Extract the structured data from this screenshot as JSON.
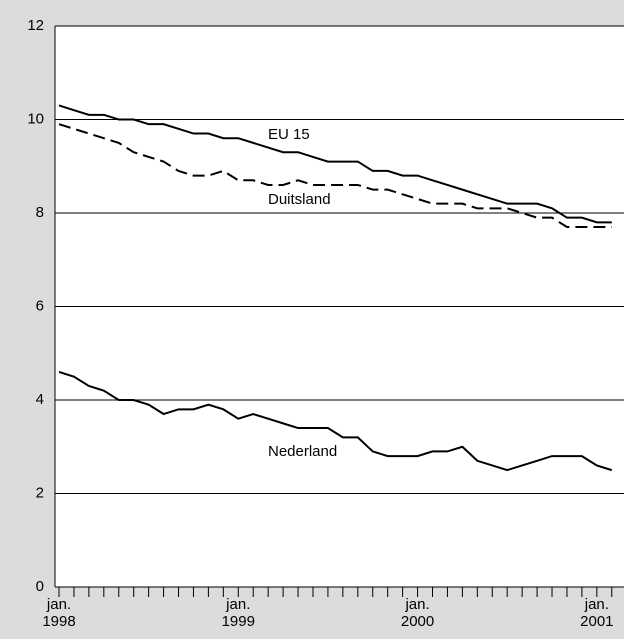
{
  "chart_data": {
    "type": "line",
    "categories": [
      "jan. 1998",
      null,
      null,
      null,
      null,
      null,
      null,
      null,
      null,
      null,
      null,
      null,
      "jan. 1999",
      null,
      null,
      null,
      null,
      null,
      null,
      null,
      null,
      null,
      null,
      null,
      "jan. 2000",
      null,
      null,
      null,
      null,
      null,
      null,
      null,
      null,
      null,
      null,
      null,
      "jan. 2001",
      null
    ],
    "series": [
      {
        "name": "EU 15",
        "color": "#000000",
        "dash": false,
        "values": [
          10.3,
          10.2,
          10.1,
          10.1,
          10.0,
          10.0,
          9.9,
          9.9,
          9.8,
          9.7,
          9.7,
          9.6,
          9.6,
          9.5,
          9.4,
          9.3,
          9.3,
          9.2,
          9.1,
          9.1,
          9.1,
          8.9,
          8.9,
          8.8,
          8.8,
          8.7,
          8.6,
          8.5,
          8.4,
          8.3,
          8.2,
          8.2,
          8.2,
          8.1,
          7.9,
          7.9,
          7.8,
          7.8
        ]
      },
      {
        "name": "Duitsland",
        "color": "#000000",
        "dash": true,
        "values": [
          9.9,
          9.8,
          9.7,
          9.6,
          9.5,
          9.3,
          9.2,
          9.1,
          8.9,
          8.8,
          8.8,
          8.9,
          8.7,
          8.7,
          8.6,
          8.6,
          8.7,
          8.6,
          8.6,
          8.6,
          8.6,
          8.5,
          8.5,
          8.4,
          8.3,
          8.2,
          8.2,
          8.2,
          8.1,
          8.1,
          8.1,
          8.0,
          7.9,
          7.9,
          7.7,
          7.7,
          7.7,
          7.7
        ]
      },
      {
        "name": "Nederland",
        "color": "#000000",
        "dash": false,
        "values": [
          4.6,
          4.5,
          4.3,
          4.2,
          4.0,
          4.0,
          3.9,
          3.7,
          3.8,
          3.8,
          3.9,
          3.8,
          3.6,
          3.7,
          3.6,
          3.5,
          3.4,
          3.4,
          3.4,
          3.2,
          3.2,
          2.9,
          2.8,
          2.8,
          2.8,
          2.9,
          2.9,
          3.0,
          2.7,
          2.6,
          2.5,
          2.6,
          2.7,
          2.8,
          2.8,
          2.8,
          2.6,
          2.5
        ]
      }
    ],
    "ylim": [
      0,
      12
    ],
    "yticks": [
      0,
      2,
      4,
      6,
      8,
      10,
      12
    ],
    "grid": true
  }
}
